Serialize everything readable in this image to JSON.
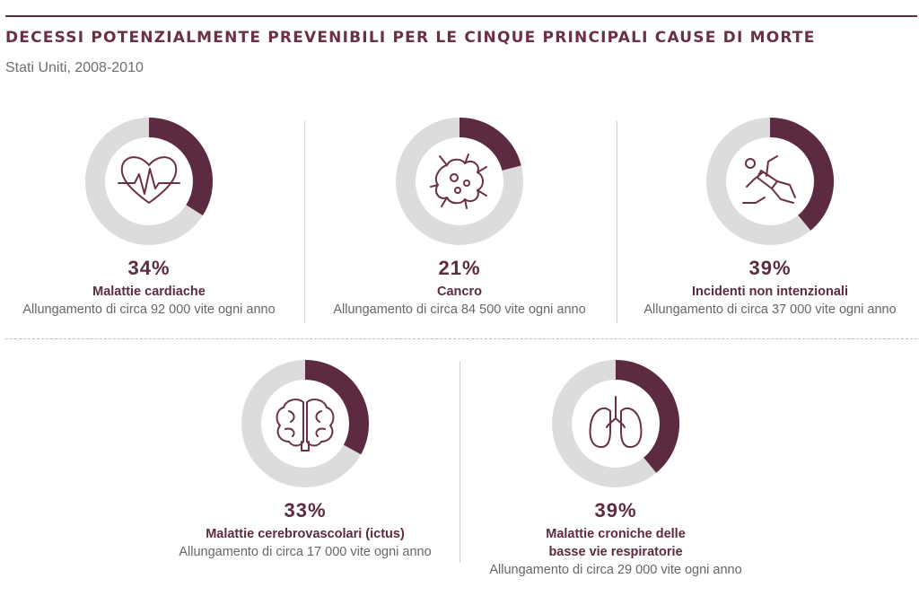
{
  "title": "DECESSI POTENZIALMENTE PREVENIBILI PER LE CINQUE PRINCIPALI CAUSE DI MORTE",
  "subtitle": "Stati Uniti, 2008-2010",
  "colors": {
    "accent": "#5c2a41",
    "ring_bg": "#dcdcdc",
    "text": "#666666"
  },
  "chart_data": {
    "type": "pie",
    "title": "DECESSI POTENZIALMENTE PREVENIBILI PER LE CINQUE PRINCIPALI CAUSE DI MORTE",
    "subtitle": "Stati Uniti, 2008-2010",
    "items": [
      {
        "percent": 34,
        "percent_label": "34%",
        "label_lines": [
          "Malattie cardiache"
        ],
        "note": "Allungamento di circa 92 000 vite ogni anno",
        "icon": "heart-icon"
      },
      {
        "percent": 21,
        "percent_label": "21%",
        "label_lines": [
          "Cancro"
        ],
        "note": "Allungamento di circa 84 500 vite ogni anno",
        "icon": "cancer-cell-icon"
      },
      {
        "percent": 39,
        "percent_label": "39%",
        "label_lines": [
          "Incidenti non intenzionali"
        ],
        "note": "Allungamento di circa 37 000 vite ogni anno",
        "icon": "falling-person-icon"
      },
      {
        "percent": 33,
        "percent_label": "33%",
        "label_lines": [
          "Malattie cerebrovascolari (ictus)"
        ],
        "note": "Allungamento di circa 17 000 vite ogni anno",
        "icon": "brain-icon"
      },
      {
        "percent": 39,
        "percent_label": "39%",
        "label_lines": [
          "Malattie croniche delle",
          "basse vie respiratorie"
        ],
        "note": "Allungamento di circa 29 000 vite ogni anno",
        "icon": "lungs-icon"
      }
    ]
  }
}
